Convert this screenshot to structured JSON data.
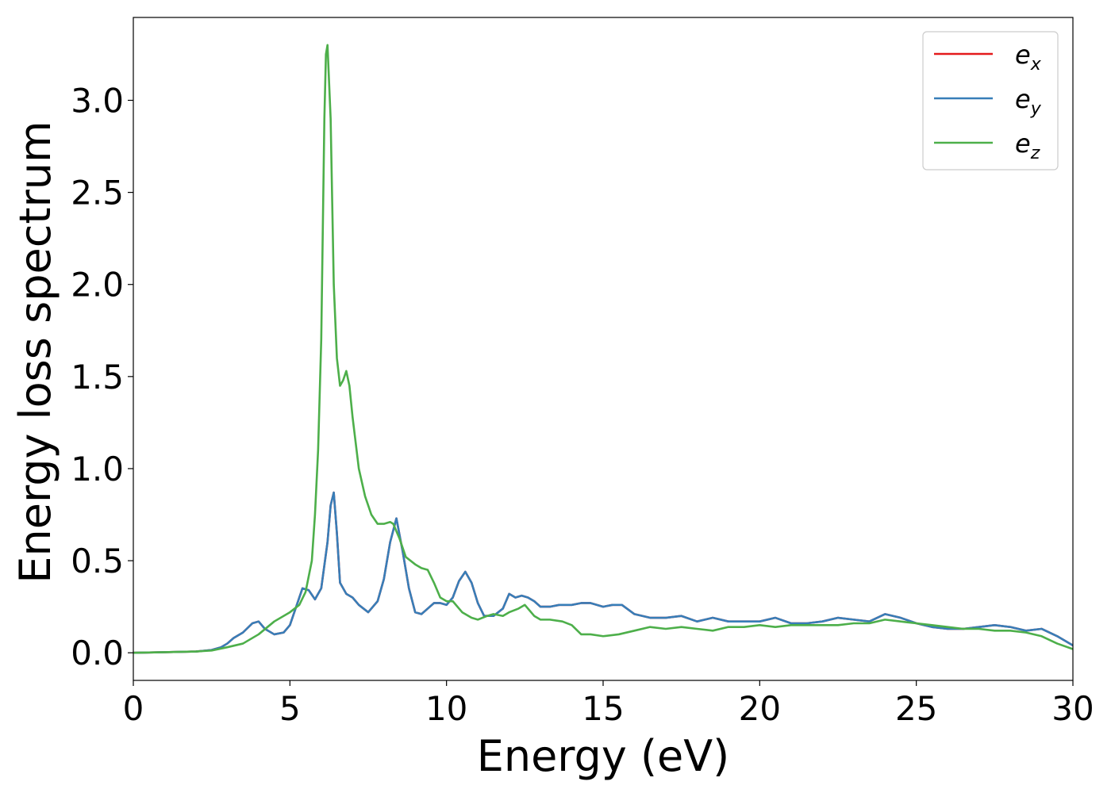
{
  "chart_data": {
    "type": "line",
    "xlabel": "Energy (eV)",
    "ylabel": "Energy loss spectrum",
    "xlim": [
      0,
      30
    ],
    "ylim": [
      -0.15,
      3.45
    ],
    "xticks": [
      0,
      5,
      10,
      15,
      20,
      25,
      30
    ],
    "xtick_labels": [
      "0",
      "5",
      "10",
      "15",
      "20",
      "25",
      "30"
    ],
    "yticks": [
      0.0,
      0.5,
      1.0,
      1.5,
      2.0,
      2.5,
      3.0
    ],
    "ytick_labels": [
      "0.0",
      "0.5",
      "1.0",
      "1.5",
      "2.0",
      "2.5",
      "3.0"
    ],
    "grid": false,
    "legend_position": "top-right",
    "series": [
      {
        "name": "e_x",
        "legend_base": "e",
        "legend_sub": "x",
        "color": "#e41a1c",
        "x": [
          0,
          1,
          2,
          2.5,
          2.8,
          3.0,
          3.2,
          3.5,
          3.8,
          4.0,
          4.2,
          4.5,
          4.8,
          5.0,
          5.2,
          5.4,
          5.6,
          5.8,
          6.0,
          6.2,
          6.3,
          6.4,
          6.5,
          6.6,
          6.8,
          7.0,
          7.2,
          7.5,
          7.8,
          8.0,
          8.2,
          8.4,
          8.6,
          8.8,
          9.0,
          9.2,
          9.4,
          9.6,
          9.8,
          10.0,
          10.2,
          10.4,
          10.6,
          10.8,
          11.0,
          11.2,
          11.5,
          11.8,
          12.0,
          12.2,
          12.4,
          12.6,
          12.8,
          13.0,
          13.3,
          13.6,
          14.0,
          14.3,
          14.6,
          15.0,
          15.3,
          15.6,
          16.0,
          16.5,
          17.0,
          17.5,
          18.0,
          18.5,
          19.0,
          19.5,
          20.0,
          20.5,
          21.0,
          21.5,
          22.0,
          22.5,
          23.0,
          23.5,
          24.0,
          24.5,
          25.0,
          25.5,
          26.0,
          26.5,
          27.0,
          27.5,
          28.0,
          28.5,
          29.0,
          29.5,
          30.0
        ],
        "y": [
          0.0,
          0.003,
          0.007,
          0.015,
          0.03,
          0.05,
          0.08,
          0.11,
          0.16,
          0.17,
          0.13,
          0.1,
          0.11,
          0.15,
          0.25,
          0.35,
          0.34,
          0.29,
          0.35,
          0.6,
          0.8,
          0.87,
          0.65,
          0.38,
          0.32,
          0.3,
          0.26,
          0.22,
          0.28,
          0.4,
          0.6,
          0.73,
          0.55,
          0.35,
          0.22,
          0.21,
          0.24,
          0.27,
          0.27,
          0.26,
          0.3,
          0.39,
          0.44,
          0.38,
          0.27,
          0.2,
          0.2,
          0.24,
          0.32,
          0.3,
          0.31,
          0.3,
          0.28,
          0.25,
          0.25,
          0.26,
          0.26,
          0.27,
          0.27,
          0.25,
          0.26,
          0.26,
          0.21,
          0.19,
          0.19,
          0.2,
          0.17,
          0.19,
          0.17,
          0.17,
          0.17,
          0.19,
          0.16,
          0.16,
          0.17,
          0.19,
          0.18,
          0.17,
          0.21,
          0.19,
          0.16,
          0.14,
          0.13,
          0.13,
          0.14,
          0.15,
          0.14,
          0.12,
          0.13,
          0.09,
          0.04
        ]
      },
      {
        "name": "e_y",
        "legend_base": "e",
        "legend_sub": "y",
        "color": "#377eb8",
        "x": [
          0,
          1,
          2,
          2.5,
          2.8,
          3.0,
          3.2,
          3.5,
          3.8,
          4.0,
          4.2,
          4.5,
          4.8,
          5.0,
          5.2,
          5.4,
          5.6,
          5.8,
          6.0,
          6.2,
          6.3,
          6.4,
          6.5,
          6.6,
          6.8,
          7.0,
          7.2,
          7.5,
          7.8,
          8.0,
          8.2,
          8.4,
          8.6,
          8.8,
          9.0,
          9.2,
          9.4,
          9.6,
          9.8,
          10.0,
          10.2,
          10.4,
          10.6,
          10.8,
          11.0,
          11.2,
          11.5,
          11.8,
          12.0,
          12.2,
          12.4,
          12.6,
          12.8,
          13.0,
          13.3,
          13.6,
          14.0,
          14.3,
          14.6,
          15.0,
          15.3,
          15.6,
          16.0,
          16.5,
          17.0,
          17.5,
          18.0,
          18.5,
          19.0,
          19.5,
          20.0,
          20.5,
          21.0,
          21.5,
          22.0,
          22.5,
          23.0,
          23.5,
          24.0,
          24.5,
          25.0,
          25.5,
          26.0,
          26.5,
          27.0,
          27.5,
          28.0,
          28.5,
          29.0,
          29.5,
          30.0
        ],
        "y": [
          0.0,
          0.003,
          0.007,
          0.015,
          0.03,
          0.05,
          0.08,
          0.11,
          0.16,
          0.17,
          0.13,
          0.1,
          0.11,
          0.15,
          0.25,
          0.35,
          0.34,
          0.29,
          0.35,
          0.6,
          0.8,
          0.87,
          0.65,
          0.38,
          0.32,
          0.3,
          0.26,
          0.22,
          0.28,
          0.4,
          0.6,
          0.73,
          0.55,
          0.35,
          0.22,
          0.21,
          0.24,
          0.27,
          0.27,
          0.26,
          0.3,
          0.39,
          0.44,
          0.38,
          0.27,
          0.2,
          0.2,
          0.24,
          0.32,
          0.3,
          0.31,
          0.3,
          0.28,
          0.25,
          0.25,
          0.26,
          0.26,
          0.27,
          0.27,
          0.25,
          0.26,
          0.26,
          0.21,
          0.19,
          0.19,
          0.2,
          0.17,
          0.19,
          0.17,
          0.17,
          0.17,
          0.19,
          0.16,
          0.16,
          0.17,
          0.19,
          0.18,
          0.17,
          0.21,
          0.19,
          0.16,
          0.14,
          0.13,
          0.13,
          0.14,
          0.15,
          0.14,
          0.12,
          0.13,
          0.09,
          0.04
        ]
      },
      {
        "name": "e_z",
        "legend_base": "e",
        "legend_sub": "z",
        "color": "#4daf4a",
        "x": [
          0,
          1,
          2,
          2.5,
          3.0,
          3.5,
          4.0,
          4.5,
          5.0,
          5.3,
          5.5,
          5.7,
          5.8,
          5.9,
          6.0,
          6.05,
          6.1,
          6.15,
          6.2,
          6.3,
          6.4,
          6.5,
          6.6,
          6.7,
          6.8,
          6.9,
          7.0,
          7.2,
          7.4,
          7.6,
          7.8,
          8.0,
          8.2,
          8.3,
          8.5,
          8.7,
          9.0,
          9.2,
          9.4,
          9.6,
          9.8,
          10.0,
          10.2,
          10.5,
          10.8,
          11.0,
          11.3,
          11.5,
          11.8,
          12.0,
          12.3,
          12.5,
          12.8,
          13.0,
          13.3,
          13.7,
          14.0,
          14.3,
          14.6,
          15.0,
          15.5,
          16.0,
          16.5,
          17.0,
          17.5,
          18.0,
          18.5,
          19.0,
          19.5,
          20.0,
          20.5,
          21.0,
          21.5,
          22.0,
          22.5,
          23.0,
          23.5,
          24.0,
          24.5,
          25.0,
          25.5,
          26.0,
          26.5,
          27.0,
          27.5,
          28.0,
          28.5,
          29.0,
          29.5,
          30.0
        ],
        "y": [
          0.0,
          0.003,
          0.007,
          0.012,
          0.03,
          0.05,
          0.1,
          0.17,
          0.22,
          0.26,
          0.33,
          0.5,
          0.75,
          1.1,
          1.7,
          2.3,
          2.9,
          3.25,
          3.3,
          2.9,
          2.0,
          1.6,
          1.45,
          1.48,
          1.53,
          1.45,
          1.28,
          1.0,
          0.85,
          0.75,
          0.7,
          0.7,
          0.71,
          0.7,
          0.62,
          0.52,
          0.48,
          0.46,
          0.45,
          0.38,
          0.3,
          0.28,
          0.28,
          0.22,
          0.19,
          0.18,
          0.2,
          0.21,
          0.2,
          0.22,
          0.24,
          0.26,
          0.2,
          0.18,
          0.18,
          0.17,
          0.15,
          0.1,
          0.1,
          0.09,
          0.1,
          0.12,
          0.14,
          0.13,
          0.14,
          0.13,
          0.12,
          0.14,
          0.14,
          0.15,
          0.14,
          0.15,
          0.15,
          0.15,
          0.15,
          0.16,
          0.16,
          0.18,
          0.17,
          0.16,
          0.15,
          0.14,
          0.13,
          0.13,
          0.12,
          0.12,
          0.11,
          0.09,
          0.05,
          0.02
        ]
      }
    ]
  }
}
